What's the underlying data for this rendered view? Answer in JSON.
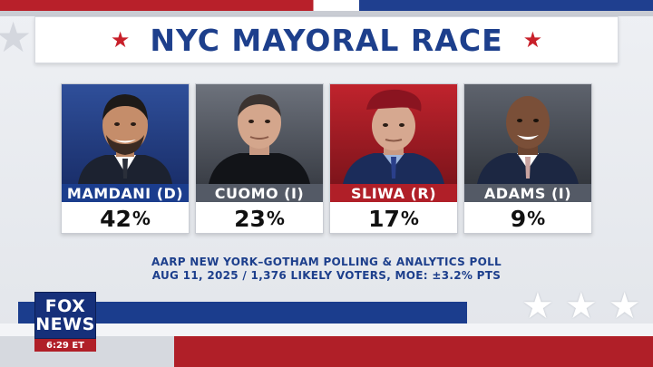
{
  "title": "NYC MAYORAL RACE",
  "colors": {
    "navy": "#1d3f8c",
    "democrat": "#1b3d8d",
    "independent": "#545a66",
    "republican": "#b01f28"
  },
  "candidates": [
    {
      "name": "MAMDANI (D)",
      "pct": "42",
      "pct_sign": "%"
    },
    {
      "name": "CUOMO (I)",
      "pct": "23",
      "pct_sign": "%"
    },
    {
      "name": "SLIWA (R)",
      "pct": "17",
      "pct_sign": "%"
    },
    {
      "name": "ADAMS (I)",
      "pct": "9",
      "pct_sign": "%"
    }
  ],
  "source": {
    "line1": "AARP NEW YORK–GOTHAM POLLING & ANALYTICS POLL",
    "line2": "AUG 11, 2025 / 1,376 LIKELY VOTERS, MOE: ±3.2% PTS"
  },
  "network": {
    "logo_line1": "FOX",
    "logo_line2": "NEWS",
    "time": "6:29 ET"
  }
}
